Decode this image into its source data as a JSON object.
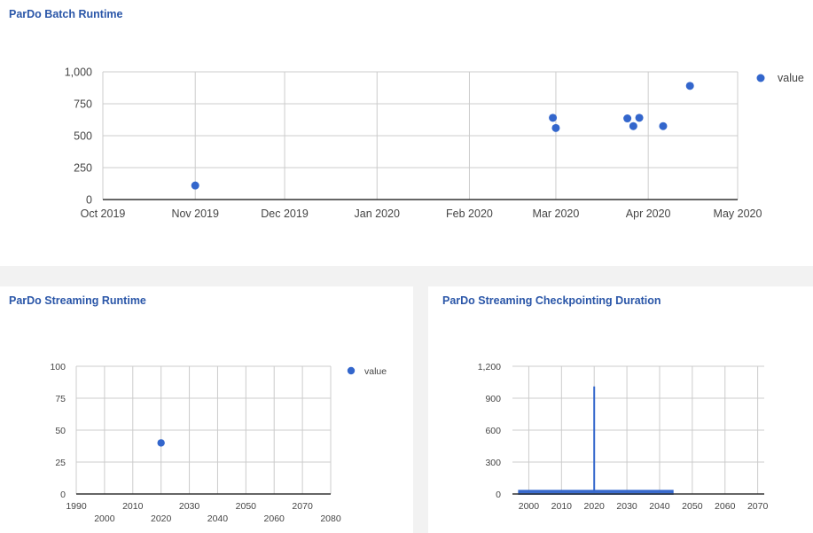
{
  "panels": {
    "batch": {
      "title": "ParDo Batch Runtime"
    },
    "streaming": {
      "title": "ParDo Streaming Runtime"
    },
    "checkpoint": {
      "title": "ParDo Streaming Checkpointing Duration"
    }
  },
  "colors": {
    "series": "#3366cc",
    "grid": "#cccccc",
    "axis": "#333333",
    "title": "#2a56a8"
  },
  "chart_data": [
    {
      "id": "batch",
      "type": "scatter",
      "title": "ParDo Batch Runtime",
      "x_axis": "date",
      "xlim": [
        "2019-10-01",
        "2020-05-01"
      ],
      "x_ticks": [
        {
          "date": "2019-10-01",
          "label": "Oct 2019"
        },
        {
          "date": "2019-11-01",
          "label": "Nov 2019"
        },
        {
          "date": "2019-12-01",
          "label": "Dec 2019"
        },
        {
          "date": "2020-01-01",
          "label": "Jan 2020"
        },
        {
          "date": "2020-02-01",
          "label": "Feb 2020"
        },
        {
          "date": "2020-03-01",
          "label": "Mar 2020"
        },
        {
          "date": "2020-04-01",
          "label": "Apr 2020"
        },
        {
          "date": "2020-05-01",
          "label": "May 2020"
        }
      ],
      "ylim": [
        0,
        1000
      ],
      "y_ticks": [
        {
          "value": 0,
          "label": "0"
        },
        {
          "value": 250,
          "label": "250"
        },
        {
          "value": 500,
          "label": "500"
        },
        {
          "value": 750,
          "label": "750"
        },
        {
          "value": 1000,
          "label": "1,000"
        }
      ],
      "grid": true,
      "legend": "right",
      "series": [
        {
          "name": "value",
          "points": [
            {
              "x": "2019-11-01",
              "y": 110
            },
            {
              "x": "2020-02-29",
              "y": 640
            },
            {
              "x": "2020-03-01",
              "y": 560
            },
            {
              "x": "2020-03-25",
              "y": 635
            },
            {
              "x": "2020-03-27",
              "y": 575
            },
            {
              "x": "2020-03-29",
              "y": 640
            },
            {
              "x": "2020-04-06",
              "y": 575
            },
            {
              "x": "2020-04-15",
              "y": 890
            }
          ]
        }
      ]
    },
    {
      "id": "streaming",
      "type": "scatter",
      "title": "ParDo Streaming Runtime",
      "xlim": [
        1990,
        2080
      ],
      "x_ticks": [
        1990,
        2000,
        2010,
        2020,
        2030,
        2040,
        2050,
        2060,
        2070,
        2080
      ],
      "ylim": [
        0,
        100
      ],
      "y_ticks": [
        {
          "value": 0,
          "label": "0"
        },
        {
          "value": 25,
          "label": "25"
        },
        {
          "value": 50,
          "label": "50"
        },
        {
          "value": 75,
          "label": "75"
        },
        {
          "value": 100,
          "label": "100"
        }
      ],
      "grid": true,
      "legend": "right",
      "series": [
        {
          "name": "value",
          "points": [
            {
              "x": 2020,
              "y": 40
            }
          ]
        }
      ]
    },
    {
      "id": "checkpoint",
      "type": "area",
      "title": "ParDo Streaming Checkpointing Duration",
      "xlim": [
        1995,
        2072
      ],
      "x_ticks": [
        2000,
        2010,
        2020,
        2030,
        2040,
        2050,
        2060,
        2070
      ],
      "ylim": [
        0,
        1200
      ],
      "y_ticks": [
        {
          "value": 0,
          "label": "0"
        },
        {
          "value": 300,
          "label": "300"
        },
        {
          "value": 600,
          "label": "600"
        },
        {
          "value": 900,
          "label": "900"
        },
        {
          "value": 1200,
          "label": "1,200"
        }
      ],
      "grid": true,
      "legend": "none",
      "series": [
        {
          "points": [
            {
              "x": 1997,
              "y": 30
            },
            {
              "x": 2020,
              "y": 30
            },
            {
              "x": 2020,
              "y": 1010
            },
            {
              "x": 2020,
              "y": 30
            },
            {
              "x": 2044,
              "y": 30
            }
          ]
        }
      ]
    }
  ]
}
